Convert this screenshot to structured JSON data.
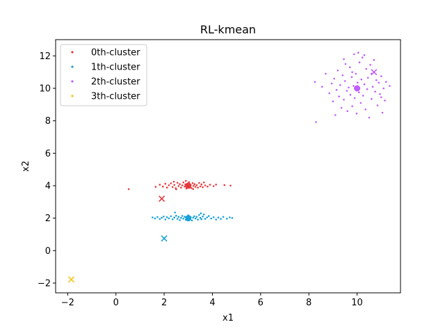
{
  "chart_data": {
    "type": "scatter",
    "title": "RL-kmean",
    "xlabel": "x1",
    "ylabel": "x2",
    "xlim": [
      -2.5,
      11.8
    ],
    "ylim": [
      -2.6,
      13.0
    ],
    "xticks": [
      -2,
      0,
      2,
      4,
      6,
      8,
      10
    ],
    "yticks": [
      -2,
      0,
      2,
      4,
      6,
      8,
      10,
      12
    ],
    "grid": false,
    "legend_position": "top-left",
    "series": [
      {
        "name": "0th-cluster",
        "color": "#e8383b",
        "points": [
          [
            0.53,
            3.79
          ],
          [
            1.65,
            3.93
          ],
          [
            1.82,
            4.06
          ],
          [
            1.95,
            3.95
          ],
          [
            2.05,
            4.12
          ],
          [
            2.12,
            3.89
          ],
          [
            2.2,
            4.03
          ],
          [
            2.28,
            4.15
          ],
          [
            2.35,
            3.92
          ],
          [
            2.42,
            4.05
          ],
          [
            2.48,
            3.85
          ],
          [
            2.55,
            4.18
          ],
          [
            2.6,
            3.98
          ],
          [
            2.65,
            4.1
          ],
          [
            2.7,
            3.88
          ],
          [
            2.75,
            4.02
          ],
          [
            2.8,
            4.2
          ],
          [
            2.85,
            3.95
          ],
          [
            2.88,
            4.08
          ],
          [
            2.92,
            3.83
          ],
          [
            2.97,
            4.13
          ],
          [
            3.0,
            3.97
          ],
          [
            3.03,
            4.22
          ],
          [
            3.07,
            3.9
          ],
          [
            3.1,
            4.05
          ],
          [
            3.13,
            3.86
          ],
          [
            3.18,
            4.16
          ],
          [
            3.22,
            3.99
          ],
          [
            3.26,
            4.1
          ],
          [
            3.3,
            3.93
          ],
          [
            3.35,
            4.04
          ],
          [
            3.4,
            3.88
          ],
          [
            3.45,
            4.17
          ],
          [
            3.5,
            3.96
          ],
          [
            3.55,
            4.08
          ],
          [
            3.6,
            3.91
          ],
          [
            3.7,
            4.02
          ],
          [
            3.8,
            3.95
          ],
          [
            3.9,
            4.06
          ],
          [
            4.05,
            3.98
          ],
          [
            4.15,
            4.07
          ],
          [
            4.5,
            4.04
          ],
          [
            4.75,
            4.01
          ],
          [
            2.4,
            4.25
          ],
          [
            2.9,
            4.3
          ],
          [
            3.2,
            3.8
          ],
          [
            2.5,
            3.78
          ],
          [
            3.65,
            4.2
          ]
        ],
        "centroid": [
          3.0,
          4.0
        ],
        "cross": [
          1.9,
          3.2
        ]
      },
      {
        "name": "1th-cluster",
        "color": "#17a0d8",
        "points": [
          [
            1.52,
            2.05
          ],
          [
            1.62,
            1.98
          ],
          [
            1.72,
            2.07
          ],
          [
            1.82,
            1.95
          ],
          [
            1.9,
            2.03
          ],
          [
            1.98,
            2.1
          ],
          [
            2.05,
            1.92
          ],
          [
            2.12,
            2.06
          ],
          [
            2.2,
            1.99
          ],
          [
            2.28,
            2.12
          ],
          [
            2.35,
            1.93
          ],
          [
            2.42,
            2.04
          ],
          [
            2.5,
            2.15
          ],
          [
            2.55,
            1.96
          ],
          [
            2.6,
            2.08
          ],
          [
            2.65,
            1.88
          ],
          [
            2.7,
            2.02
          ],
          [
            2.75,
            2.14
          ],
          [
            2.8,
            1.97
          ],
          [
            2.85,
            2.09
          ],
          [
            2.9,
            1.9
          ],
          [
            2.95,
            2.05
          ],
          [
            3.0,
            2.18
          ],
          [
            3.05,
            1.95
          ],
          [
            3.1,
            2.07
          ],
          [
            3.15,
            1.86
          ],
          [
            3.2,
            2.03
          ],
          [
            3.25,
            2.12
          ],
          [
            3.3,
            1.98
          ],
          [
            3.35,
            2.09
          ],
          [
            3.4,
            1.91
          ],
          [
            3.45,
            2.2
          ],
          [
            3.5,
            2.02
          ],
          [
            3.55,
            1.94
          ],
          [
            3.6,
            2.1
          ],
          [
            3.65,
            2.23
          ],
          [
            3.7,
            1.96
          ],
          [
            3.78,
            2.05
          ],
          [
            3.85,
            2.13
          ],
          [
            3.95,
            1.98
          ],
          [
            4.05,
            2.06
          ],
          [
            4.15,
            1.92
          ],
          [
            4.25,
            2.04
          ],
          [
            4.35,
            1.95
          ],
          [
            4.45,
            2.08
          ],
          [
            4.6,
            1.97
          ],
          [
            4.72,
            2.05
          ],
          [
            4.82,
            2.01
          ],
          [
            2.45,
            2.35
          ],
          [
            3.52,
            2.3
          ]
        ],
        "centroid": [
          3.0,
          2.0
        ],
        "cross": [
          2.0,
          0.75
        ]
      },
      {
        "name": "2th-cluster",
        "color": "#bd5eff",
        "points": [
          [
            8.3,
            7.92
          ],
          [
            8.25,
            10.4
          ],
          [
            8.55,
            10.1
          ],
          [
            8.7,
            10.9
          ],
          [
            8.85,
            9.7
          ],
          [
            8.95,
            10.3
          ],
          [
            9.0,
            9.2
          ],
          [
            9.05,
            10.6
          ],
          [
            9.1,
            8.35
          ],
          [
            9.15,
            9.9
          ],
          [
            9.2,
            11.1
          ],
          [
            9.25,
            9.5
          ],
          [
            9.3,
            10.2
          ],
          [
            9.35,
            8.8
          ],
          [
            9.4,
            10.8
          ],
          [
            9.45,
            9.3
          ],
          [
            9.5,
            10.45
          ],
          [
            9.52,
            11.5
          ],
          [
            9.58,
            9.85
          ],
          [
            9.6,
            8.6
          ],
          [
            9.65,
            10.05
          ],
          [
            9.7,
            11.3
          ],
          [
            9.72,
            9.6
          ],
          [
            9.78,
            10.7
          ],
          [
            9.8,
            8.9
          ],
          [
            9.85,
            10.15
          ],
          [
            9.88,
            12.1
          ],
          [
            9.9,
            9.4
          ],
          [
            9.95,
            10.9
          ],
          [
            9.98,
            8.45
          ],
          [
            10.02,
            10.35
          ],
          [
            10.05,
            12.2
          ],
          [
            10.08,
            9.75
          ],
          [
            10.1,
            11.6
          ],
          [
            10.15,
            9.1
          ],
          [
            10.18,
            10.55
          ],
          [
            10.22,
            11.9
          ],
          [
            10.25,
            9.55
          ],
          [
            10.3,
            10.25
          ],
          [
            10.35,
            8.7
          ],
          [
            10.38,
            11.2
          ],
          [
            10.42,
            9.95
          ],
          [
            10.45,
            10.65
          ],
          [
            10.5,
            8.2
          ],
          [
            10.55,
            11.45
          ],
          [
            10.6,
            9.35
          ],
          [
            10.65,
            10.1
          ],
          [
            10.7,
            11.75
          ],
          [
            10.75,
            9.8
          ],
          [
            10.8,
            10.5
          ],
          [
            10.85,
            8.95
          ],
          [
            10.9,
            10.35
          ],
          [
            10.95,
            9.65
          ],
          [
            11.0,
            10.75
          ],
          [
            11.05,
            8.5
          ],
          [
            11.1,
            10.0
          ],
          [
            11.15,
            9.25
          ],
          [
            11.2,
            10.4
          ],
          [
            11.35,
            10.15
          ],
          [
            9.45,
            11.8
          ],
          [
            10.3,
            12.05
          ],
          [
            9.8,
            11.0
          ],
          [
            10.6,
            10.9
          ],
          [
            11.0,
            9.45
          ]
        ],
        "centroid": [
          10.0,
          10.0
        ],
        "cross": [
          10.7,
          11.0
        ]
      },
      {
        "name": "3th-cluster",
        "color": "#f5c518",
        "points": [],
        "centroid": null,
        "cross": [
          -1.85,
          -1.78
        ]
      }
    ]
  }
}
